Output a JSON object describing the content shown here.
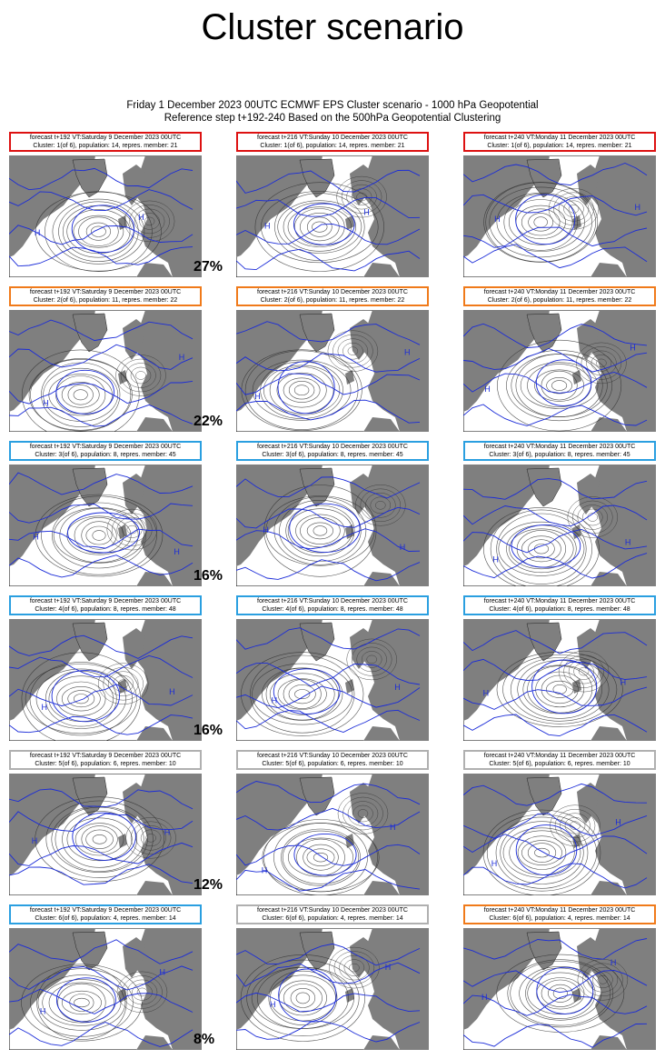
{
  "title": "Cluster scenario",
  "subtitle_line1": "Friday 1 December 2023 00UTC ECMWF EPS Cluster scenario - 1000 hPa Geopotential",
  "subtitle_line2": "Reference step t+192-240 Based on the 500hPa Geopotential Clustering",
  "colors": {
    "red": "#dd1111",
    "orange": "#f07a1a",
    "blue": "#2a9fe0",
    "grey": "#b0b0b0",
    "land": "#7f7f7f",
    "blue_contour": "#1a2bd8",
    "black_contour": "#333333"
  },
  "clusters": [
    {
      "percent": "27%",
      "panels": [
        {
          "line1": "forecast t+192 VT:Saturday 9 December 2023 00UTC",
          "line2": "Cluster: 1(of 6), population: 14, repres. member: 21",
          "border": "red"
        },
        {
          "line1": "forecast t+216 VT:Sunday 10 December 2023 00UTC",
          "line2": "Cluster: 1(of 6), population: 14, repres. member: 21",
          "border": "red"
        },
        {
          "line1": "forecast t+240 VT:Monday 11 December 2023 00UTC",
          "line2": "Cluster: 1(of 6), population: 14, repres. member: 21",
          "border": "red"
        }
      ]
    },
    {
      "percent": "22%",
      "panels": [
        {
          "line1": "forecast t+192 VT:Saturday 9 December 2023 00UTC",
          "line2": "Cluster: 2(of 6), population: 11, repres. member: 22",
          "border": "orange"
        },
        {
          "line1": "forecast t+216 VT:Sunday 10 December 2023 00UTC",
          "line2": "Cluster: 2(of 6), population: 11, repres. member: 22",
          "border": "orange"
        },
        {
          "line1": "forecast t+240 VT:Monday 11 December 2023 00UTC",
          "line2": "Cluster: 2(of 6), population: 11, repres. member: 22",
          "border": "orange"
        }
      ]
    },
    {
      "percent": "16%",
      "panels": [
        {
          "line1": "forecast t+192 VT:Saturday 9 December 2023 00UTC",
          "line2": "Cluster: 3(of 6), population: 8, repres. member: 45",
          "border": "blue"
        },
        {
          "line1": "forecast t+216 VT:Sunday 10 December 2023 00UTC",
          "line2": "Cluster: 3(of 6), population: 8, repres. member: 45",
          "border": "blue"
        },
        {
          "line1": "forecast t+240 VT:Monday 11 December 2023 00UTC",
          "line2": "Cluster: 3(of 6), population: 8, repres. member: 45",
          "border": "blue"
        }
      ]
    },
    {
      "percent": "16%",
      "panels": [
        {
          "line1": "forecast t+192 VT:Saturday 9 December 2023 00UTC",
          "line2": "Cluster: 4(of 6), population: 8, repres. member: 48",
          "border": "blue"
        },
        {
          "line1": "forecast t+216 VT:Sunday 10 December 2023 00UTC",
          "line2": "Cluster: 4(of 6), population: 8, repres. member: 48",
          "border": "blue"
        },
        {
          "line1": "forecast t+240 VT:Monday 11 December 2023 00UTC",
          "line2": "Cluster: 4(of 6), population: 8, repres. member: 48",
          "border": "blue"
        }
      ]
    },
    {
      "percent": "12%",
      "panels": [
        {
          "line1": "forecast t+192 VT:Saturday 9 December 2023 00UTC",
          "line2": "Cluster: 5(of 6), population: 6, repres. member: 10",
          "border": "grey"
        },
        {
          "line1": "forecast t+216 VT:Sunday 10 December 2023 00UTC",
          "line2": "Cluster: 5(of 6), population: 6, repres. member: 10",
          "border": "grey"
        },
        {
          "line1": "forecast t+240 VT:Monday 11 December 2023 00UTC",
          "line2": "Cluster: 5(of 6), population: 6, repres. member: 10",
          "border": "grey"
        }
      ]
    },
    {
      "percent": "8%",
      "panels": [
        {
          "line1": "forecast t+192 VT:Saturday 9 December 2023 00UTC",
          "line2": "Cluster: 6(of 6), population: 4, repres. member: 14",
          "border": "blue"
        },
        {
          "line1": "forecast t+216 VT:Sunday 10 December 2023 00UTC",
          "line2": "Cluster: 6(of 6), population: 4, repres. member: 14",
          "border": "grey"
        },
        {
          "line1": "forecast t+240 VT:Monday 11 December 2023 00UTC",
          "line2": "Cluster: 6(of 6), population: 4, repres. member: 14",
          "border": "orange"
        }
      ]
    }
  ]
}
